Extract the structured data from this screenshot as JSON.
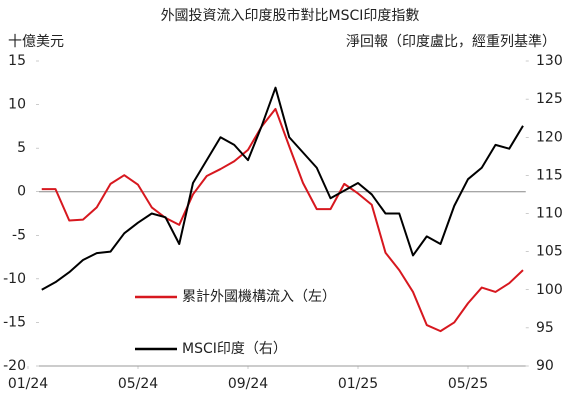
{
  "chart_data": {
    "type": "line",
    "title": "外國投資流入印度股市對比MSCI印度指數",
    "y_label": "十億美元",
    "y2_label": "淨回報（印度盧比，經重列基準）",
    "x": [
      0.5,
      1,
      1.5,
      2,
      2.5,
      3,
      3.5,
      4,
      4.5,
      5,
      5.5,
      6,
      6.5,
      7,
      7.5,
      8,
      8.5,
      9,
      9.5,
      10,
      10.5,
      11,
      11.5,
      12,
      12.5,
      13,
      13.5,
      14,
      14.5,
      15,
      15.5,
      16,
      16.5,
      17,
      17.5,
      18
    ],
    "xlim": [
      0.4,
      18.1
    ],
    "xticks": [
      {
        "value": 0,
        "label": "01/24"
      },
      {
        "value": 4,
        "label": "05/24"
      },
      {
        "value": 8,
        "label": "09/24"
      },
      {
        "value": 12,
        "label": "01/25"
      },
      {
        "value": 16,
        "label": "05/25"
      }
    ],
    "ylim": [
      -20,
      15
    ],
    "yticks": [
      15,
      10,
      5,
      0,
      -5,
      -10,
      -15,
      -20
    ],
    "y2lim": [
      90,
      130
    ],
    "y2ticks": [
      130,
      125,
      120,
      115,
      110,
      105,
      100,
      95,
      90
    ],
    "series": [
      {
        "name": "累計外國機構流入（左）",
        "color": "#d7181f",
        "values": [
          0.3,
          0.3,
          -3.3,
          -3.2,
          -1.8,
          0.9,
          1.9,
          0.8,
          -1.8,
          -3,
          -3.8,
          -0.3,
          1.8,
          2.6,
          3.5,
          4.8,
          7.5,
          9.5,
          5.2,
          1,
          -2,
          -2,
          0.9,
          -0.2,
          -1.5,
          -7,
          -9,
          -11.5,
          -15.3,
          -16,
          -15,
          -12.8,
          -11,
          -11.5,
          -10.5,
          -9
        ]
      },
      {
        "name": "MSCI印度（右）",
        "color": "#000000",
        "axis": "y2",
        "values": [
          100,
          101,
          102.3,
          103.9,
          104.8,
          105,
          107.4,
          108.8,
          110,
          109.5,
          106,
          114,
          117,
          120,
          119,
          117,
          121.5,
          126.5,
          120,
          118,
          116,
          112,
          113,
          114,
          112.5,
          110,
          110,
          104.5,
          107,
          106,
          111,
          114.5,
          116,
          119,
          118.5,
          121.5
        ]
      }
    ]
  }
}
